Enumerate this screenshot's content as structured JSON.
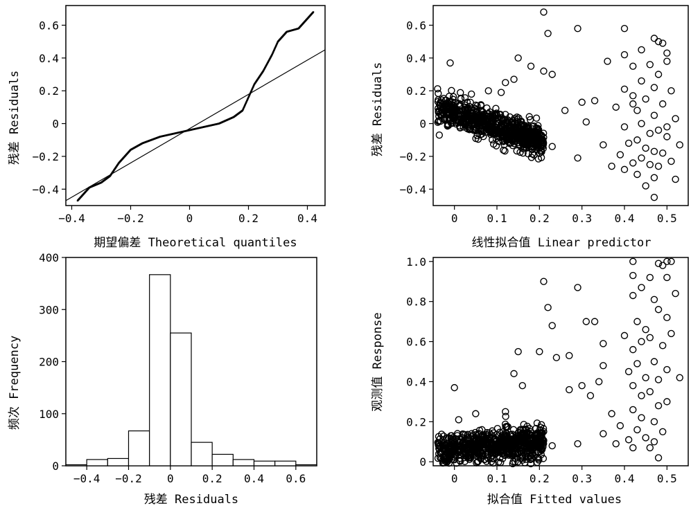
{
  "chart_data": [
    {
      "type": "scatter",
      "xlabel": "期望偏差 Theoretical quantiles",
      "ylabel": "残差 Residuals",
      "x_ticks": [
        "−0.4",
        "−0.2",
        "0",
        "0.2",
        "0.4"
      ],
      "y_ticks": [
        "−0.4",
        "−0.2",
        "0",
        "0.2",
        "0.4",
        "0.6"
      ],
      "xlim": [
        -0.42,
        0.46
      ],
      "ylim": [
        -0.5,
        0.72
      ],
      "qq_anchor_points": [
        [
          -0.38,
          -0.47
        ],
        [
          -0.34,
          -0.39
        ],
        [
          -0.3,
          -0.36
        ],
        [
          -0.27,
          -0.32
        ],
        [
          -0.24,
          -0.24
        ],
        [
          -0.2,
          -0.16
        ],
        [
          -0.16,
          -0.12
        ],
        [
          -0.1,
          -0.08
        ],
        [
          -0.05,
          -0.06
        ],
        [
          0.0,
          -0.04
        ],
        [
          0.05,
          -0.02
        ],
        [
          0.1,
          0.0
        ],
        [
          0.15,
          0.04
        ],
        [
          0.18,
          0.08
        ],
        [
          0.2,
          0.16
        ],
        [
          0.22,
          0.24
        ],
        [
          0.25,
          0.32
        ],
        [
          0.28,
          0.42
        ],
        [
          0.3,
          0.5
        ],
        [
          0.33,
          0.56
        ],
        [
          0.37,
          0.58
        ],
        [
          0.42,
          0.68
        ]
      ],
      "reference_line": [
        [
          -0.42,
          -0.47
        ],
        [
          0.46,
          0.45
        ]
      ]
    },
    {
      "type": "scatter",
      "xlabel": "线性拟合值 Linear predictor",
      "ylabel": "残差 Residuals",
      "x_ticks": [
        "0",
        "0.1",
        "0.2",
        "0.3",
        "0.4",
        "0.5"
      ],
      "y_ticks": [
        "−0.4",
        "−0.2",
        "0",
        "0.2",
        "0.4",
        "0.6"
      ],
      "xlim": [
        -0.05,
        0.55
      ],
      "ylim": [
        -0.5,
        0.72
      ],
      "points_outer": [
        [
          0.21,
          0.68
        ],
        [
          0.22,
          0.55
        ],
        [
          0.29,
          0.58
        ],
        [
          0.4,
          0.58
        ],
        [
          0.47,
          0.52
        ],
        [
          0.48,
          0.5
        ],
        [
          0.49,
          0.49
        ],
        [
          0.44,
          0.45
        ],
        [
          0.5,
          0.43
        ],
        [
          0.4,
          0.42
        ],
        [
          0.15,
          0.4
        ],
        [
          0.36,
          0.38
        ],
        [
          0.5,
          0.38
        ],
        [
          0.46,
          0.36
        ],
        [
          0.42,
          0.35
        ],
        [
          0.18,
          0.35
        ],
        [
          0.21,
          0.32
        ],
        [
          0.23,
          0.3
        ],
        [
          0.48,
          0.3
        ],
        [
          0.14,
          0.27
        ],
        [
          0.44,
          0.26
        ],
        [
          0.47,
          0.22
        ],
        [
          0.4,
          0.21
        ],
        [
          0.51,
          0.2
        ],
        [
          0.42,
          0.17
        ],
        [
          0.45,
          0.15
        ],
        [
          0.33,
          0.14
        ],
        [
          0.3,
          0.13
        ],
        [
          0.49,
          0.12
        ],
        [
          0.38,
          0.1
        ],
        [
          0.43,
          0.08
        ],
        [
          0.26,
          0.08
        ],
        [
          0.47,
          0.05
        ],
        [
          0.52,
          0.03
        ],
        [
          0.31,
          0.01
        ],
        [
          0.44,
          0.0
        ],
        [
          0.4,
          -0.02
        ],
        [
          0.48,
          -0.04
        ],
        [
          0.46,
          -0.06
        ],
        [
          0.5,
          -0.08
        ],
        [
          0.43,
          -0.1
        ],
        [
          0.41,
          -0.12
        ],
        [
          0.53,
          -0.13
        ],
        [
          0.35,
          -0.13
        ],
        [
          0.45,
          -0.15
        ],
        [
          0.47,
          -0.17
        ],
        [
          0.49,
          -0.18
        ],
        [
          0.39,
          -0.19
        ],
        [
          0.44,
          -0.21
        ],
        [
          0.51,
          -0.23
        ],
        [
          0.42,
          -0.24
        ],
        [
          0.46,
          -0.25
        ],
        [
          0.48,
          -0.26
        ],
        [
          0.37,
          -0.26
        ],
        [
          0.4,
          -0.28
        ],
        [
          0.43,
          -0.31
        ],
        [
          0.47,
          -0.33
        ],
        [
          0.52,
          -0.34
        ],
        [
          0.45,
          -0.38
        ],
        [
          0.47,
          -0.45
        ],
        [
          0.29,
          -0.21
        ],
        [
          0.23,
          -0.14
        ],
        [
          0.42,
          0.12
        ],
        [
          0.5,
          -0.02
        ],
        [
          0.04,
          0.18
        ],
        [
          0.08,
          0.2
        ],
        [
          0.12,
          0.25
        ],
        [
          0.03,
          0.13
        ],
        [
          -0.01,
          0.37
        ],
        [
          0.11,
          0.19
        ]
      ],
      "cluster": {
        "x": [
          -0.04,
          0.21
        ],
        "y_at_xmin": 0.09,
        "y_at_xmax": -0.11,
        "spread": 0.09,
        "count": 750
      }
    },
    {
      "type": "bar",
      "xlabel": "残差 Residuals",
      "ylabel": "频次 Frequency",
      "x_ticks": [
        "−0.4",
        "−0.2",
        "0",
        "0.2",
        "0.4",
        "0.6"
      ],
      "y_ticks": [
        "0",
        "100",
        "200",
        "300",
        "400"
      ],
      "xlim": [
        -0.5,
        0.7
      ],
      "ylim": [
        0,
        400
      ],
      "bin_edges": [
        -0.5,
        -0.4,
        -0.3,
        -0.2,
        -0.1,
        0.0,
        0.1,
        0.2,
        0.3,
        0.4,
        0.5,
        0.6,
        0.7
      ],
      "values": [
        2,
        12,
        14,
        67,
        367,
        255,
        45,
        22,
        12,
        9,
        9,
        2
      ]
    },
    {
      "type": "scatter",
      "xlabel": "拟合值 Fitted values",
      "ylabel": "观测值 Response",
      "x_ticks": [
        "0",
        "0.1",
        "0.2",
        "0.3",
        "0.4",
        "0.5"
      ],
      "y_ticks": [
        "0",
        "0.2",
        "0.4",
        "0.6",
        "0.8",
        "1.0"
      ],
      "xlim": [
        -0.05,
        0.55
      ],
      "ylim": [
        -0.02,
        1.02
      ],
      "points_outer": [
        [
          0.42,
          1.0
        ],
        [
          0.48,
          0.99
        ],
        [
          0.5,
          1.0
        ],
        [
          0.51,
          1.0
        ],
        [
          0.49,
          0.98
        ],
        [
          0.42,
          0.93
        ],
        [
          0.46,
          0.92
        ],
        [
          0.5,
          0.92
        ],
        [
          0.21,
          0.9
        ],
        [
          0.29,
          0.87
        ],
        [
          0.44,
          0.87
        ],
        [
          0.52,
          0.84
        ],
        [
          0.42,
          0.83
        ],
        [
          0.47,
          0.81
        ],
        [
          0.22,
          0.77
        ],
        [
          0.48,
          0.76
        ],
        [
          0.5,
          0.72
        ],
        [
          0.31,
          0.7
        ],
        [
          0.33,
          0.7
        ],
        [
          0.43,
          0.7
        ],
        [
          0.23,
          0.68
        ],
        [
          0.45,
          0.66
        ],
        [
          0.51,
          0.64
        ],
        [
          0.4,
          0.63
        ],
        [
          0.46,
          0.62
        ],
        [
          0.44,
          0.6
        ],
        [
          0.35,
          0.59
        ],
        [
          0.49,
          0.58
        ],
        [
          0.42,
          0.56
        ],
        [
          0.2,
          0.55
        ],
        [
          0.15,
          0.55
        ],
        [
          0.27,
          0.53
        ],
        [
          0.24,
          0.52
        ],
        [
          0.47,
          0.5
        ],
        [
          0.43,
          0.49
        ],
        [
          0.35,
          0.48
        ],
        [
          0.5,
          0.46
        ],
        [
          0.41,
          0.45
        ],
        [
          0.14,
          0.44
        ],
        [
          0.45,
          0.42
        ],
        [
          0.48,
          0.41
        ],
        [
          0.53,
          0.42
        ],
        [
          0.34,
          0.4
        ],
        [
          0.42,
          0.38
        ],
        [
          0.3,
          0.38
        ],
        [
          0.27,
          0.36
        ],
        [
          0.46,
          0.35
        ],
        [
          0.44,
          0.33
        ],
        [
          0.32,
          0.33
        ],
        [
          0.5,
          0.3
        ],
        [
          0.48,
          0.28
        ],
        [
          0.42,
          0.26
        ],
        [
          0.37,
          0.24
        ],
        [
          0.44,
          0.22
        ],
        [
          0.47,
          0.2
        ],
        [
          0.39,
          0.18
        ],
        [
          0.43,
          0.16
        ],
        [
          0.49,
          0.15
        ],
        [
          0.35,
          0.14
        ],
        [
          0.45,
          0.12
        ],
        [
          0.41,
          0.11
        ],
        [
          0.47,
          0.1
        ],
        [
          0.38,
          0.09
        ],
        [
          0.46,
          0.07
        ],
        [
          0.29,
          0.09
        ],
        [
          0.42,
          0.07
        ],
        [
          0.48,
          0.02
        ],
        [
          0.23,
          0.08
        ],
        [
          0.05,
          0.24
        ],
        [
          0.0,
          0.37
        ],
        [
          0.01,
          0.21
        ],
        [
          0.12,
          0.25
        ],
        [
          0.16,
          0.38
        ]
      ],
      "cluster": {
        "x": [
          -0.04,
          0.21
        ],
        "y_at_xmin": 0.06,
        "y_at_xmax": 0.1,
        "spread": 0.08,
        "count": 750
      }
    }
  ]
}
